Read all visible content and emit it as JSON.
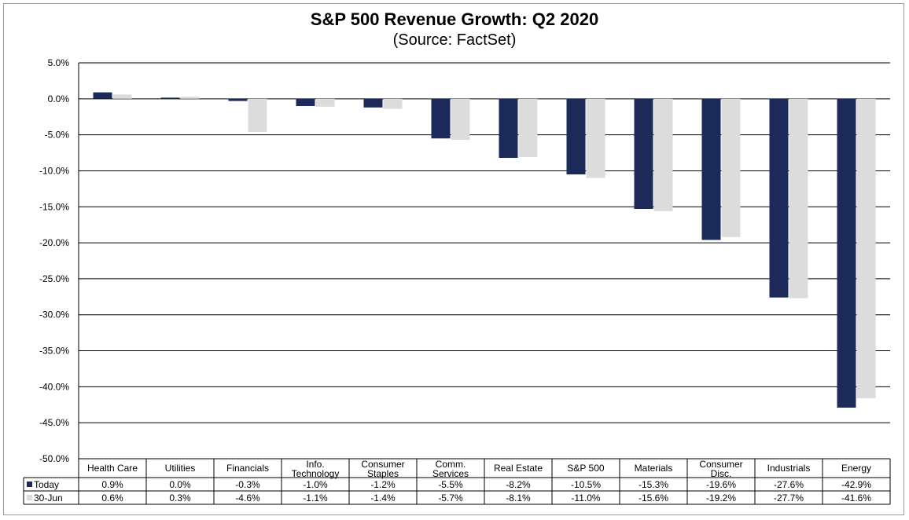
{
  "chart_data": {
    "type": "bar",
    "title": "S&P 500 Revenue Growth: Q2 2020",
    "subtitle": "(Source: FactSet)",
    "categories": [
      [
        "Health Care"
      ],
      [
        "Utilities"
      ],
      [
        "Financials"
      ],
      [
        "Info.",
        "Technology"
      ],
      [
        "Consumer",
        "Staples"
      ],
      [
        "Comm.",
        "Services"
      ],
      [
        "Real Estate"
      ],
      [
        "S&P 500"
      ],
      [
        "Materials"
      ],
      [
        "Consumer",
        "Disc."
      ],
      [
        "Industrials"
      ],
      [
        "Energy"
      ]
    ],
    "series": [
      {
        "name": "Today",
        "color": "#1c2a5a",
        "values": [
          0.9,
          0.0,
          -0.3,
          -1.0,
          -1.2,
          -5.5,
          -8.2,
          -10.5,
          -15.3,
          -19.6,
          -27.6,
          -42.9
        ],
        "labels": [
          "0.9%",
          "0.0%",
          "-0.3%",
          "-1.0%",
          "-1.2%",
          "-5.5%",
          "-8.2%",
          "-10.5%",
          "-15.3%",
          "-19.6%",
          "-27.6%",
          "-42.9%"
        ]
      },
      {
        "name": "30-Jun",
        "color": "#dcdcdc",
        "values": [
          0.6,
          0.3,
          -4.6,
          -1.1,
          -1.4,
          -5.7,
          -8.1,
          -11.0,
          -15.6,
          -19.2,
          -27.7,
          -41.6
        ],
        "labels": [
          "0.6%",
          "0.3%",
          "-4.6%",
          "-1.1%",
          "-1.4%",
          "-5.7%",
          "-8.1%",
          "-11.0%",
          "-15.6%",
          "-19.2%",
          "-27.7%",
          "-41.6%"
        ]
      }
    ],
    "ylim": [
      -50,
      5
    ],
    "ytick_values": [
      5,
      0,
      -5,
      -10,
      -15,
      -20,
      -25,
      -30,
      -35,
      -40,
      -45,
      -50
    ],
    "ytick_labels": [
      "5.0%",
      "0.0%",
      "-5.0%",
      "-10.0%",
      "-15.0%",
      "-20.0%",
      "-25.0%",
      "-30.0%",
      "-35.0%",
      "-40.0%",
      "-45.0%",
      "-50.0%"
    ],
    "grid": true,
    "legend": "data-table"
  }
}
